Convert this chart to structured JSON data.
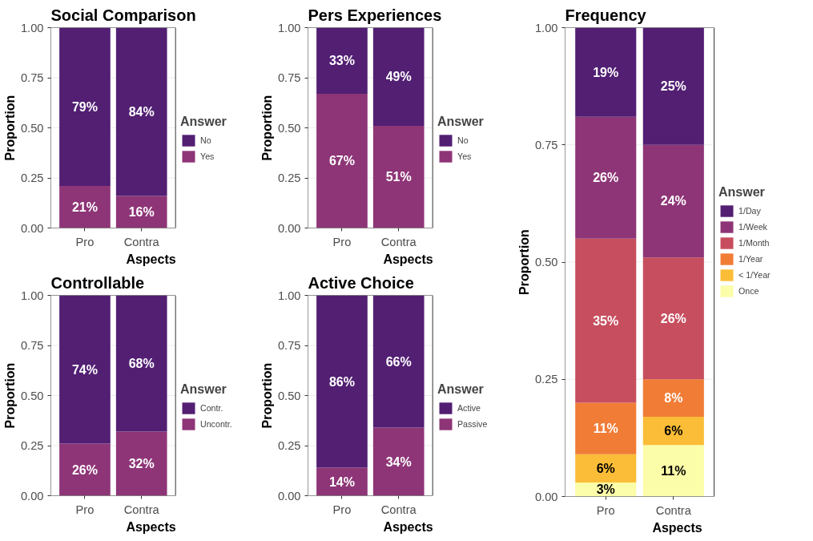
{
  "chart_data": [
    {
      "type": "bar",
      "title": "Social Comparison",
      "xlabel": "Aspects",
      "ylabel": "Proportion",
      "legend_title": "Answer",
      "categories": [
        "Pro",
        "Contra"
      ],
      "stacked": true,
      "ylim": [
        0,
        1
      ],
      "yticks": [
        {
          "value": 0,
          "label": "0.00"
        },
        {
          "value": 0.25,
          "label": "0.25"
        },
        {
          "value": 0.5,
          "label": "0.50"
        },
        {
          "value": 0.75,
          "label": "0.75"
        },
        {
          "value": 1,
          "label": "1.00"
        }
      ],
      "grid": "y",
      "legend": "right",
      "series": [
        {
          "name": "Yes",
          "color": "#8e3577",
          "values": [
            0.21,
            0.16
          ],
          "value_labels": [
            "21%",
            "16%"
          ]
        },
        {
          "name": "No",
          "color": "#521f73",
          "values": [
            0.79,
            0.84
          ],
          "value_labels": [
            "79%",
            "84%"
          ]
        }
      ]
    },
    {
      "type": "bar",
      "title": "Pers Experiences",
      "xlabel": "Aspects",
      "ylabel": "Proportion",
      "legend_title": "Answer",
      "categories": [
        "Pro",
        "Contra"
      ],
      "stacked": true,
      "ylim": [
        0,
        1
      ],
      "yticks": [
        {
          "value": 0,
          "label": "0.00"
        },
        {
          "value": 0.25,
          "label": "0.25"
        },
        {
          "value": 0.5,
          "label": "0.50"
        },
        {
          "value": 0.75,
          "label": "0.75"
        },
        {
          "value": 1,
          "label": "1.00"
        }
      ],
      "grid": "y",
      "legend": "right",
      "series": [
        {
          "name": "Yes",
          "color": "#8e3577",
          "values": [
            0.67,
            0.51
          ],
          "value_labels": [
            "67%",
            "51%"
          ]
        },
        {
          "name": "No",
          "color": "#521f73",
          "values": [
            0.33,
            0.49
          ],
          "value_labels": [
            "33%",
            "49%"
          ]
        }
      ]
    },
    {
      "type": "bar",
      "title": "Frequency",
      "xlabel": "Aspects",
      "ylabel": "Proportion",
      "legend_title": "Answer",
      "categories": [
        "Pro",
        "Contra"
      ],
      "stacked": true,
      "ylim": [
        0,
        1
      ],
      "yticks": [
        {
          "value": 0,
          "label": "0.00"
        },
        {
          "value": 0.25,
          "label": "0.25"
        },
        {
          "value": 0.5,
          "label": "0.50"
        },
        {
          "value": 0.75,
          "label": "0.75"
        },
        {
          "value": 1,
          "label": "1.00"
        }
      ],
      "grid": "y",
      "legend": "right",
      "series": [
        {
          "name": "Once",
          "color": "#fcfda8",
          "values": [
            0.03,
            0.11
          ],
          "value_labels": [
            "3%",
            "11%"
          ]
        },
        {
          "name": "< 1/Year",
          "color": "#fbbd37",
          "values": [
            0.06,
            0.06
          ],
          "value_labels": [
            "6%",
            "6%"
          ]
        },
        {
          "name": "1/Year",
          "color": "#f07c36",
          "values": [
            0.11,
            0.08
          ],
          "value_labels": [
            "11%",
            "8%"
          ]
        },
        {
          "name": "1/Month",
          "color": "#c74e5e",
          "values": [
            0.35,
            0.26
          ],
          "value_labels": [
            "35%",
            "26%"
          ]
        },
        {
          "name": "1/Week",
          "color": "#8e3577",
          "values": [
            0.26,
            0.24
          ],
          "value_labels": [
            "26%",
            "24%"
          ]
        },
        {
          "name": "1/Day",
          "color": "#521f73",
          "values": [
            0.19,
            0.25
          ],
          "value_labels": [
            "19%",
            "25%"
          ]
        }
      ]
    },
    {
      "type": "bar",
      "title": "Controllable",
      "xlabel": "Aspects",
      "ylabel": "Proportion",
      "legend_title": "Answer",
      "categories": [
        "Pro",
        "Contra"
      ],
      "stacked": true,
      "ylim": [
        0,
        1
      ],
      "yticks": [
        {
          "value": 0,
          "label": "0.00"
        },
        {
          "value": 0.25,
          "label": "0.25"
        },
        {
          "value": 0.5,
          "label": "0.50"
        },
        {
          "value": 0.75,
          "label": "0.75"
        },
        {
          "value": 1,
          "label": "1.00"
        }
      ],
      "grid": "y",
      "legend": "right",
      "series": [
        {
          "name": "Uncontr.",
          "color": "#8e3577",
          "values": [
            0.26,
            0.32
          ],
          "value_labels": [
            "26%",
            "32%"
          ]
        },
        {
          "name": "Contr.",
          "color": "#521f73",
          "values": [
            0.74,
            0.68
          ],
          "value_labels": [
            "74%",
            "68%"
          ]
        }
      ]
    },
    {
      "type": "bar",
      "title": "Active Choice",
      "xlabel": "Aspects",
      "ylabel": "Proportion",
      "legend_title": "Answer",
      "categories": [
        "Pro",
        "Contra"
      ],
      "stacked": true,
      "ylim": [
        0,
        1
      ],
      "yticks": [
        {
          "value": 0,
          "label": "0.00"
        },
        {
          "value": 0.25,
          "label": "0.25"
        },
        {
          "value": 0.5,
          "label": "0.50"
        },
        {
          "value": 0.75,
          "label": "0.75"
        },
        {
          "value": 1,
          "label": "1.00"
        }
      ],
      "grid": "y",
      "legend": "right",
      "series": [
        {
          "name": "Passive",
          "color": "#8e3577",
          "values": [
            0.14,
            0.34
          ],
          "value_labels": [
            "14%",
            "34%"
          ]
        },
        {
          "name": "Active",
          "color": "#521f73",
          "values": [
            0.86,
            0.66
          ],
          "value_labels": [
            "86%",
            "66%"
          ]
        }
      ]
    }
  ]
}
